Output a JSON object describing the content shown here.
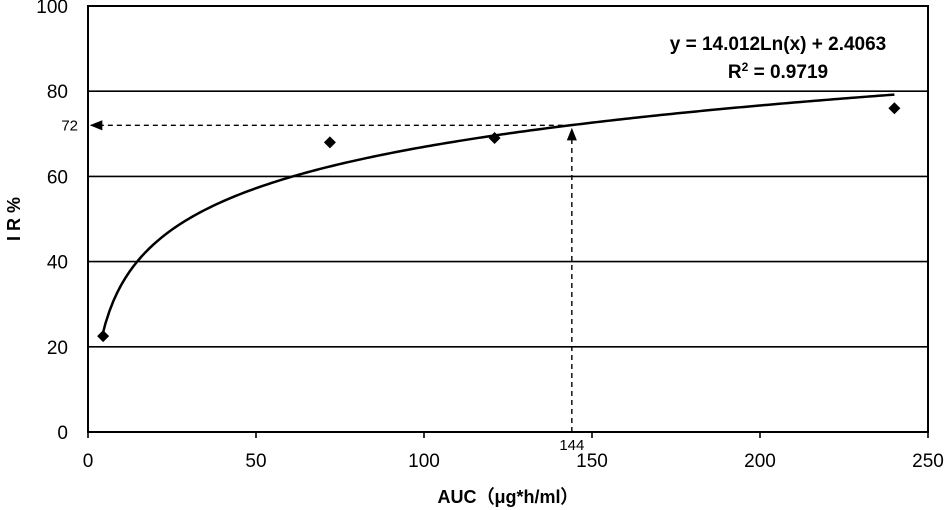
{
  "chart_data": {
    "type": "scatter",
    "xlabel": "AUC（μg*h/ml）",
    "ylabel": "I R %",
    "xlim": [
      0,
      250
    ],
    "ylim": [
      0,
      100
    ],
    "x_ticks": [
      0,
      50,
      100,
      150,
      200,
      250
    ],
    "y_ticks": [
      0,
      20,
      40,
      60,
      80,
      100
    ],
    "grid": "horizontal",
    "legend": "none",
    "series": [
      {
        "marker": "diamond",
        "x": [
          4.5,
          72,
          121,
          240
        ],
        "y": [
          22.5,
          68,
          69,
          76
        ]
      }
    ],
    "trendline": {
      "type": "logarithmic",
      "a": 14.012,
      "b": 2.4063,
      "x_range": [
        4,
        240
      ],
      "equation": "y = 14.012Ln(x) + 2.4063",
      "r2_label": "R",
      "r2_sup": "2",
      "r2_value": " = 0.9719"
    },
    "annotations": {
      "x_marker": {
        "value": 144,
        "label": "144"
      },
      "y_marker": {
        "value": 72,
        "label": "72"
      }
    }
  }
}
